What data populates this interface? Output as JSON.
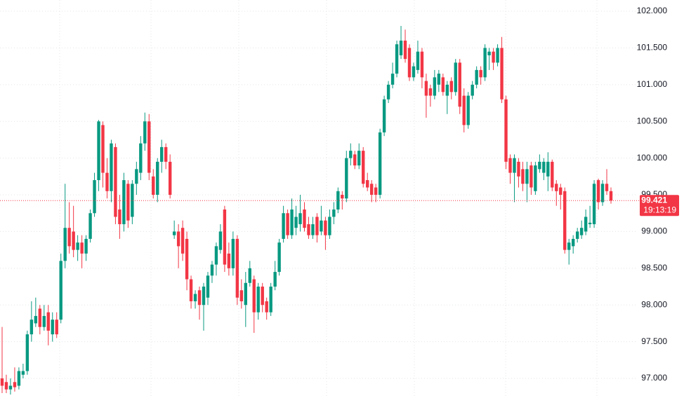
{
  "chart_data": {
    "type": "candlestick",
    "up_color": "#089981",
    "down_color": "#f23645",
    "ylim": [
      96.733,
      102.153
    ],
    "yticks": [
      {
        "value": 97,
        "label": "97.000"
      },
      {
        "value": 97.5,
        "label": "97.500"
      },
      {
        "value": 98,
        "label": "98.000"
      },
      {
        "value": 98.5,
        "label": "98.500"
      },
      {
        "value": 99,
        "label": "99.000"
      },
      {
        "value": 99.5,
        "label": "99.500"
      },
      {
        "value": 100,
        "label": "100.000"
      },
      {
        "value": 100.5,
        "label": "100.500"
      },
      {
        "value": 101,
        "label": "101.000"
      },
      {
        "value": 101.5,
        "label": "101.500"
      },
      {
        "value": 102,
        "label": "102.000"
      }
    ],
    "grid": true,
    "last_price": 99.421,
    "countdown": "19:13:19",
    "open": [
      97.0,
      96.95,
      96.85,
      96.95,
      96.9,
      97.05,
      97.1,
      97.6,
      97.75,
      97.95,
      97.7,
      97.9,
      97.6,
      97.8,
      97.8,
      98.6,
      99.05,
      99.0,
      98.75,
      98.85,
      98.7,
      98.9,
      99.25,
      99.7,
      100.45,
      99.8,
      99.55,
      100.15,
      99.3,
      99.1,
      99.65,
      99.2,
      99.65,
      99.8,
      100.2,
      100.5,
      99.75,
      99.5,
      99.95,
      100.15,
      99.95,
      98.95,
      99.0,
      99.05,
      98.9,
      98.35,
      98.05,
      98.2,
      98.0,
      98.1,
      98.4,
      98.55,
      98.75,
      99.3,
      98.7,
      98.5,
      98.9,
      98.2,
      98.0,
      98.3,
      98.35,
      97.9,
      98.25,
      98.05,
      97.9,
      98.25,
      98.45,
      98.9,
      99.25,
      98.95,
      99.05,
      99.1,
      99.3,
      99.1,
      98.95,
      99.2,
      99.0,
      99.15,
      98.95,
      99.2,
      99.3,
      99.5,
      99.45,
      100.0,
      100.05,
      99.9,
      100.1,
      99.7,
      99.65,
      99.6,
      99.5,
      100.35,
      100.8,
      101.0,
      101.15,
      101.4,
      101.6,
      101.5,
      101.1,
      101.2,
      101.45,
      101.05,
      100.95,
      100.85,
      101.0,
      101.1,
      100.85,
      101.05,
      100.9,
      101.3,
      100.85,
      100.45,
      100.85,
      101.0,
      101.2,
      101.1,
      101.4,
      101.45,
      101.3,
      101.5,
      100.8,
      100.0,
      99.8,
      99.95,
      99.85,
      99.65,
      99.9,
      99.55,
      99.85,
      99.8,
      99.75,
      99.95,
      99.65,
      99.6,
      99.55,
      98.75,
      98.8,
      98.9,
      98.95,
      99.0,
      99.1,
      99.1,
      99.7,
      99.4,
      99.65,
      99.55
    ],
    "high": [
      97.7,
      97.05,
      97.0,
      97.15,
      97.15,
      97.2,
      97.65,
      98.05,
      98.1,
      98.0,
      98.0,
      98.0,
      97.9,
      97.9,
      98.7,
      99.65,
      99.4,
      99.35,
      98.95,
      98.95,
      98.95,
      99.3,
      99.8,
      100.52,
      100.5,
      100.0,
      100.25,
      100.2,
      99.5,
      99.8,
      99.7,
      99.7,
      99.95,
      100.3,
      100.62,
      100.6,
      99.85,
      100.0,
      100.25,
      100.2,
      100.05,
      99.15,
      99.1,
      99.15,
      99.0,
      98.4,
      98.2,
      98.25,
      98.3,
      98.45,
      98.6,
      98.85,
      99.1,
      99.35,
      98.85,
      99.0,
      98.95,
      98.35,
      98.45,
      98.6,
      98.4,
      98.3,
      98.3,
      98.1,
      98.3,
      98.6,
      98.9,
      99.35,
      99.3,
      99.45,
      99.35,
      99.5,
      99.4,
      99.2,
      99.2,
      99.25,
      99.35,
      99.2,
      99.3,
      99.4,
      99.6,
      99.55,
      100.1,
      100.2,
      100.1,
      100.2,
      100.15,
      99.8,
      99.7,
      99.65,
      100.4,
      100.85,
      101.05,
      101.3,
      101.6,
      101.8,
      101.75,
      101.55,
      101.3,
      101.6,
      101.5,
      101.15,
      101.0,
      101.2,
      101.2,
      101.15,
      101.05,
      101.1,
      101.35,
      101.35,
      100.95,
      100.9,
      101.05,
      101.25,
      101.25,
      101.55,
      101.5,
      101.5,
      101.55,
      101.65,
      100.85,
      100.05,
      100.05,
      100.0,
      99.95,
      99.95,
      99.95,
      99.95,
      100.05,
      100.0,
      100.08,
      99.98,
      99.7,
      99.65,
      99.6,
      98.9,
      98.95,
      99.05,
      99.15,
      99.3,
      99.35,
      99.7,
      99.72,
      99.7,
      99.85,
      99.6
    ],
    "low": [
      96.8,
      96.8,
      96.78,
      96.82,
      96.85,
      97.0,
      97.05,
      97.5,
      97.7,
      97.6,
      97.65,
      97.45,
      97.5,
      97.55,
      97.75,
      98.5,
      98.7,
      98.65,
      98.6,
      98.5,
      98.6,
      98.85,
      99.2,
      99.55,
      99.6,
      99.45,
      99.4,
      99.1,
      98.9,
      99.0,
      99.05,
      99.1,
      99.5,
      99.7,
      100.1,
      99.7,
      99.45,
      99.4,
      99.8,
      99.85,
      99.45,
      98.9,
      98.5,
      98.6,
      98.2,
      97.95,
      97.95,
      97.8,
      97.65,
      98.0,
      98.3,
      98.4,
      98.7,
      98.45,
      98.4,
      98.4,
      98.0,
      97.95,
      97.7,
      98.25,
      97.62,
      97.8,
      97.9,
      97.8,
      97.85,
      98.2,
      98.4,
      98.85,
      98.9,
      98.9,
      98.95,
      99.0,
      99.0,
      98.9,
      98.9,
      98.85,
      98.95,
      98.75,
      98.9,
      99.1,
      99.25,
      99.3,
      99.4,
      99.9,
      99.85,
      99.85,
      99.6,
      99.55,
      99.4,
      99.4,
      99.45,
      100.3,
      100.75,
      100.95,
      101.1,
      101.35,
      101.3,
      101.05,
      101.05,
      101.15,
      100.95,
      100.55,
      100.7,
      100.8,
      100.9,
      100.85,
      100.6,
      100.8,
      100.85,
      100.6,
      100.35,
      100.4,
      100.8,
      100.95,
      101.0,
      101.05,
      101.2,
      101.2,
      101.25,
      100.75,
      99.85,
      99.65,
      99.4,
      99.6,
      99.55,
      99.4,
      99.5,
      99.5,
      99.8,
      99.7,
      99.55,
      99.55,
      99.35,
      99.3,
      98.7,
      98.55,
      98.7,
      98.85,
      98.9,
      98.95,
      99.05,
      99.05,
      99.3,
      99.35,
      99.5,
      99.38
    ],
    "close": [
      96.9,
      96.85,
      96.9,
      96.88,
      97.1,
      97.1,
      97.6,
      97.8,
      97.85,
      97.7,
      97.85,
      97.65,
      97.8,
      97.6,
      98.6,
      99.05,
      98.8,
      98.75,
      98.85,
      98.7,
      98.9,
      99.25,
      99.7,
      100.5,
      99.8,
      99.55,
      100.2,
      99.2,
      99.1,
      99.7,
      99.15,
      99.65,
      99.85,
      100.2,
      100.5,
      99.8,
      99.5,
      99.95,
      100.15,
      99.95,
      99.5,
      99.0,
      98.8,
      98.7,
      98.35,
      98.05,
      98.15,
      98.0,
      98.25,
      98.4,
      98.55,
      98.8,
      99.0,
      98.55,
      98.5,
      98.9,
      98.1,
      98.05,
      98.3,
      98.5,
      97.9,
      98.25,
      98.0,
      97.9,
      98.25,
      98.45,
      98.85,
      99.25,
      98.95,
      99.3,
      99.2,
      99.25,
      99.05,
      98.95,
      99.1,
      98.95,
      99.15,
      98.95,
      99.2,
      99.3,
      99.55,
      99.45,
      100.0,
      100.1,
      99.9,
      100.1,
      99.65,
      99.6,
      99.5,
      99.5,
      100.35,
      100.8,
      101.0,
      101.15,
      101.55,
      101.6,
      101.35,
      101.1,
      101.25,
      101.45,
      101.1,
      100.85,
      100.85,
      101.1,
      101.15,
      100.9,
      101.0,
      100.9,
      101.3,
      100.7,
      100.45,
      100.85,
      101.0,
      101.2,
      101.1,
      101.5,
      101.45,
      101.3,
      101.5,
      100.8,
      99.95,
      99.8,
      100.0,
      99.75,
      99.65,
      99.85,
      99.6,
      99.9,
      99.95,
      99.95,
      99.95,
      99.6,
      99.55,
      99.5,
      98.75,
      98.85,
      98.9,
      99.0,
      99.05,
      99.2,
      99.12,
      99.65,
      99.4,
      99.65,
      99.55,
      99.421
    ]
  }
}
